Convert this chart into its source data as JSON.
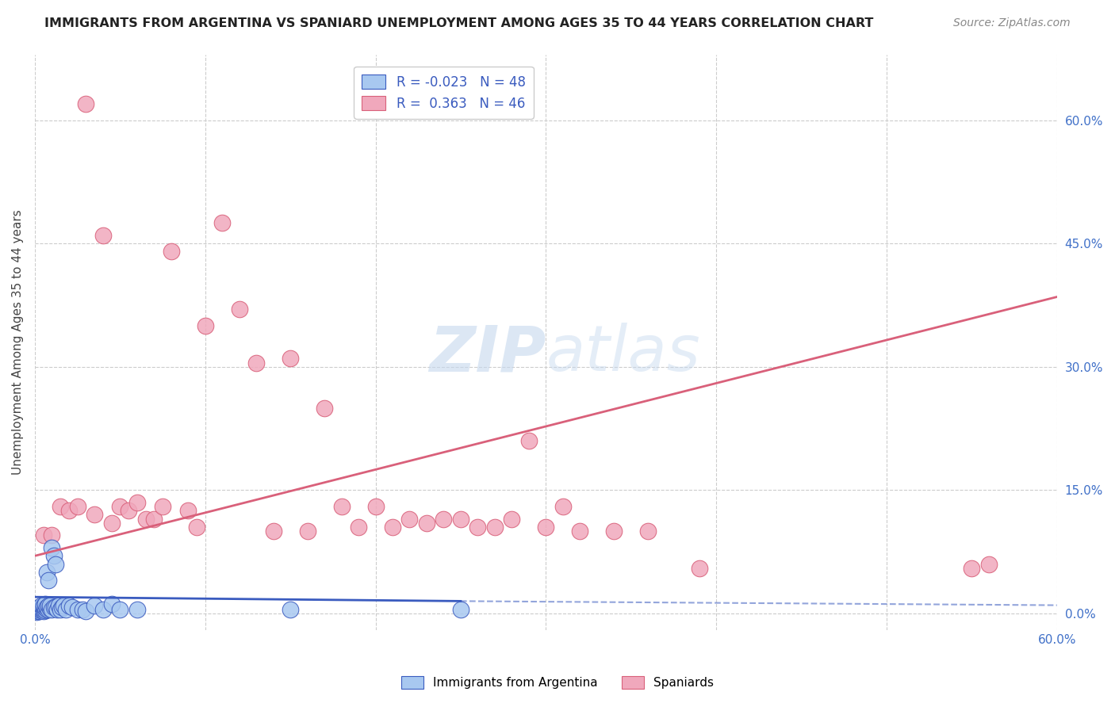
{
  "title": "IMMIGRANTS FROM ARGENTINA VS SPANIARD UNEMPLOYMENT AMONG AGES 35 TO 44 YEARS CORRELATION CHART",
  "source": "Source: ZipAtlas.com",
  "ylabel": "Unemployment Among Ages 35 to 44 years",
  "xlim": [
    0.0,
    0.6
  ],
  "ylim": [
    -0.02,
    0.68
  ],
  "yticks": [
    0.0,
    0.15,
    0.3,
    0.45,
    0.6
  ],
  "ytick_labels": [
    "0.0%",
    "15.0%",
    "30.0%",
    "45.0%",
    "60.0%"
  ],
  "xtick_positions": [
    0.0,
    0.1,
    0.2,
    0.3,
    0.4,
    0.5,
    0.6
  ],
  "xtick_labels": [
    "0.0%",
    "",
    "",
    "",
    "",
    "",
    "60.0%"
  ],
  "color_argentina": "#a8c8f0",
  "color_spaniards": "#f0a8bc",
  "color_argentina_line": "#3a5bbf",
  "color_spaniards_line": "#d9607a",
  "watermark_color": "#c8ddf5",
  "background_color": "#ffffff",
  "grid_color": "#cccccc",
  "argentina_scatter_x": [
    0.001,
    0.002,
    0.002,
    0.003,
    0.003,
    0.003,
    0.004,
    0.004,
    0.004,
    0.005,
    0.005,
    0.005,
    0.005,
    0.006,
    0.006,
    0.006,
    0.007,
    0.007,
    0.007,
    0.008,
    0.008,
    0.008,
    0.009,
    0.009,
    0.01,
    0.01,
    0.011,
    0.011,
    0.012,
    0.012,
    0.013,
    0.014,
    0.015,
    0.016,
    0.017,
    0.018,
    0.02,
    0.022,
    0.025,
    0.028,
    0.03,
    0.035,
    0.04,
    0.045,
    0.05,
    0.06,
    0.15,
    0.25
  ],
  "argentina_scatter_y": [
    0.002,
    0.003,
    0.005,
    0.003,
    0.005,
    0.008,
    0.004,
    0.006,
    0.01,
    0.003,
    0.005,
    0.008,
    0.01,
    0.004,
    0.007,
    0.012,
    0.005,
    0.008,
    0.05,
    0.005,
    0.01,
    0.04,
    0.006,
    0.01,
    0.005,
    0.08,
    0.008,
    0.07,
    0.008,
    0.06,
    0.005,
    0.01,
    0.005,
    0.008,
    0.01,
    0.005,
    0.01,
    0.008,
    0.005,
    0.005,
    0.003,
    0.01,
    0.005,
    0.012,
    0.005,
    0.005,
    0.005,
    0.005
  ],
  "spaniards_scatter_x": [
    0.005,
    0.01,
    0.015,
    0.02,
    0.025,
    0.03,
    0.035,
    0.04,
    0.045,
    0.05,
    0.055,
    0.06,
    0.065,
    0.07,
    0.075,
    0.08,
    0.09,
    0.095,
    0.1,
    0.11,
    0.12,
    0.13,
    0.14,
    0.15,
    0.16,
    0.17,
    0.18,
    0.19,
    0.2,
    0.21,
    0.22,
    0.23,
    0.24,
    0.25,
    0.26,
    0.27,
    0.28,
    0.29,
    0.3,
    0.31,
    0.32,
    0.34,
    0.36,
    0.39,
    0.55,
    0.56
  ],
  "spaniards_scatter_y": [
    0.095,
    0.095,
    0.13,
    0.125,
    0.13,
    0.62,
    0.12,
    0.46,
    0.11,
    0.13,
    0.125,
    0.135,
    0.115,
    0.115,
    0.13,
    0.44,
    0.125,
    0.105,
    0.35,
    0.475,
    0.37,
    0.305,
    0.1,
    0.31,
    0.1,
    0.25,
    0.13,
    0.105,
    0.13,
    0.105,
    0.115,
    0.11,
    0.115,
    0.115,
    0.105,
    0.105,
    0.115,
    0.21,
    0.105,
    0.13,
    0.1,
    0.1,
    0.1,
    0.055,
    0.055,
    0.06
  ],
  "arg_line_x0": 0.0,
  "arg_line_x_solid_end": 0.25,
  "arg_line_x1": 0.6,
  "arg_line_y0": 0.02,
  "arg_line_y_solid_end": 0.015,
  "arg_line_y1": 0.01,
  "spa_line_x0": 0.0,
  "spa_line_x1": 0.6,
  "spa_line_y0": 0.07,
  "spa_line_y1": 0.385
}
